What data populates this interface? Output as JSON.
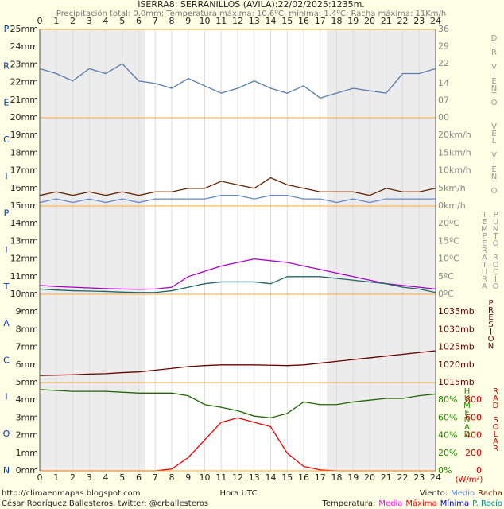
{
  "title": "ISERRA8: SERRANILLOS (AVILA):22/02/2025:1235m.",
  "subtitle": "Precipitación total: 0.0mm; Temperatura máxima: 10.6ºC, mínima: 1.4ºC; Racha máxima: 11Km/h",
  "x_label": "Hora UTC",
  "x": [
    0,
    1,
    2,
    3,
    4,
    5,
    6,
    7,
    8,
    9,
    10,
    11,
    12,
    13,
    14,
    15,
    16,
    17,
    18,
    19,
    20,
    21,
    22,
    23,
    24
  ],
  "xticks": [
    0,
    1,
    2,
    3,
    4,
    5,
    6,
    7,
    8,
    9,
    10,
    11,
    12,
    13,
    14,
    15,
    16,
    17,
    18,
    19,
    20,
    21,
    22,
    23,
    24
  ],
  "grid": true,
  "daylight": [
    6.4,
    17.4
  ],
  "left_axis": {
    "letters": [
      "P",
      "R",
      "E",
      "C",
      "I",
      "P",
      "I",
      "T",
      "A",
      "C",
      "I",
      "Ó",
      "N"
    ],
    "ylim": [
      0,
      25
    ],
    "yticks": [
      {
        "value": 0,
        "label": "0mm"
      },
      {
        "value": 1,
        "label": "1mm"
      },
      {
        "value": 2,
        "label": "2mm"
      },
      {
        "value": 3,
        "label": "3mm"
      },
      {
        "value": 4,
        "label": "4mm"
      },
      {
        "value": 5,
        "label": "5mm"
      },
      {
        "value": 6,
        "label": "6mm"
      },
      {
        "value": 7,
        "label": "7mm"
      },
      {
        "value": 8,
        "label": "8mm"
      },
      {
        "value": 9,
        "label": "9mm"
      },
      {
        "value": 10,
        "label": "10mm"
      },
      {
        "value": 11,
        "label": "11mm"
      },
      {
        "value": 12,
        "label": "12mm"
      },
      {
        "value": 13,
        "label": "13mm"
      },
      {
        "value": 14,
        "label": "14mm"
      },
      {
        "value": 15,
        "label": "15mm"
      },
      {
        "value": 16,
        "label": "16mm"
      },
      {
        "value": 17,
        "label": "17mm"
      },
      {
        "value": 18,
        "label": "18mm"
      },
      {
        "value": 19,
        "label": "19mm"
      },
      {
        "value": 20,
        "label": "20mm"
      },
      {
        "value": 21,
        "label": "21mm"
      },
      {
        "value": 22,
        "label": "22mm"
      },
      {
        "value": 23,
        "label": "23mm"
      },
      {
        "value": 24,
        "label": "24mm"
      },
      {
        "value": 25,
        "label": "25mm"
      }
    ]
  },
  "chart_data": [
    {
      "type": "line",
      "axis_labels": [
        {
          "text": "DIR VIENTO",
          "color": "#999999"
        }
      ],
      "tick_color": "#888888",
      "ylim": [
        0,
        36
      ],
      "yticks": [
        {
          "value": 36,
          "label": "36"
        },
        {
          "value": 29,
          "label": "29"
        },
        {
          "value": 22,
          "label": "22"
        },
        {
          "value": 14,
          "label": "14"
        },
        {
          "value": 7,
          "label": "07"
        },
        {
          "value": 0,
          "label": "00"
        }
      ],
      "series": [
        {
          "name": "Dirección",
          "color": "#5a7aad",
          "values": [
            20,
            18,
            15,
            20,
            18,
            22,
            15,
            14,
            12,
            16,
            13,
            10,
            12,
            15,
            12,
            10,
            13,
            8,
            10,
            12,
            11,
            10,
            18,
            18,
            20
          ]
        }
      ]
    },
    {
      "type": "line",
      "axis_labels": [
        {
          "text": "VEL VIENTO",
          "color": "#999999"
        }
      ],
      "tick_color": "#888888",
      "ylim": [
        0,
        25
      ],
      "yticks": [
        {
          "value": 0,
          "label": "0km/h"
        },
        {
          "value": 5,
          "label": "5km/h"
        },
        {
          "value": 10,
          "label": "10km/h"
        },
        {
          "value": 15,
          "label": "15km/h"
        },
        {
          "value": 20,
          "label": "20km/h"
        }
      ],
      "series": [
        {
          "name": "Racha",
          "color": "#662200",
          "values": [
            3,
            4,
            3,
            4,
            3,
            4,
            3,
            4,
            4,
            5,
            5,
            7,
            6,
            5,
            8,
            6,
            5,
            4,
            4,
            4,
            3,
            5,
            4,
            4,
            5
          ]
        },
        {
          "name": "Medio",
          "color": "#6688cc",
          "values": [
            1,
            2,
            1,
            2,
            1,
            2,
            1,
            2,
            2,
            2,
            2,
            3,
            3,
            2,
            3,
            3,
            2,
            2,
            1,
            2,
            1,
            2,
            2,
            2,
            2
          ]
        }
      ]
    },
    {
      "type": "line",
      "axis_labels": [
        {
          "text": "TEMPERATURA",
          "color": "#999999"
        },
        {
          "text": "PUNTO ROCÍO",
          "color": "#999999"
        }
      ],
      "tick_color": "#888888",
      "ylim": [
        0,
        25
      ],
      "yticks": [
        {
          "value": 0,
          "label": "0ºC"
        },
        {
          "value": 5,
          "label": "5ºC"
        },
        {
          "value": 10,
          "label": "10ºC"
        },
        {
          "value": 15,
          "label": "15ºC"
        },
        {
          "value": 20,
          "label": "20ºC"
        }
      ],
      "series": [
        {
          "name": "Media",
          "color": "#aa00cc",
          "values": [
            2.5,
            2.2,
            2,
            1.8,
            1.6,
            1.5,
            1.4,
            1.5,
            2,
            5,
            6.5,
            8,
            9,
            10,
            9.5,
            9,
            8,
            7,
            6,
            5,
            4,
            3,
            2.5,
            2,
            1.5
          ]
        },
        {
          "name": "P. Rocío",
          "color": "#226666",
          "values": [
            1.5,
            1.2,
            1,
            0.9,
            0.8,
            0.6,
            0.5,
            0.5,
            1,
            2,
            3,
            3.5,
            3.5,
            3.5,
            3,
            5,
            5,
            5,
            4.5,
            4,
            3.5,
            3,
            2,
            1.5,
            0.5
          ]
        }
      ]
    },
    {
      "type": "line",
      "axis_labels": [
        {
          "text": "PRESIÓN",
          "color": "#660000"
        }
      ],
      "tick_color": "#660000",
      "ylim": [
        1015,
        1040
      ],
      "yticks": [
        {
          "value": 1015,
          "label": "1015mb"
        },
        {
          "value": 1020,
          "label": "1020mb"
        },
        {
          "value": 1025,
          "label": "1025mb"
        },
        {
          "value": 1030,
          "label": "1030mb"
        },
        {
          "value": 1035,
          "label": "1035mb"
        }
      ],
      "series": [
        {
          "name": "Presión",
          "color": "#660000",
          "values": [
            1017,
            1017.1,
            1017.2,
            1017.4,
            1017.5,
            1017.8,
            1018,
            1018.5,
            1019,
            1019.5,
            1019.8,
            1020,
            1020,
            1020,
            1019.9,
            1019.8,
            1020,
            1020.5,
            1021,
            1021.5,
            1022,
            1022.5,
            1023,
            1023.5,
            1024
          ]
        }
      ]
    },
    {
      "type": "line",
      "axis_labels": [
        {
          "text": "HUMEDAD",
          "color": "#228800"
        },
        {
          "text": "RAD SOLAR",
          "color": "#cc0000"
        }
      ],
      "tick_color": "#228800",
      "y2_tick_color": "#cc0000",
      "ylim": [
        0,
        100
      ],
      "yticks": [
        {
          "value": 0,
          "label": "0%"
        },
        {
          "value": 20,
          "label": "20%"
        },
        {
          "value": 40,
          "label": "40%"
        },
        {
          "value": 60,
          "label": "60%"
        },
        {
          "value": 80,
          "label": "80%"
        }
      ],
      "y2lim": [
        0,
        1000
      ],
      "y2ticks": [
        0,
        200,
        400,
        600,
        800
      ],
      "y2_unit": "(W/m²)",
      "series": [
        {
          "name": "Humedad",
          "color": "#226600",
          "values": [
            92,
            91,
            90,
            90,
            90,
            89,
            88,
            88,
            88,
            85,
            75,
            72,
            68,
            62,
            60,
            65,
            78,
            75,
            75,
            78,
            80,
            82,
            82,
            85,
            87
          ]
        },
        {
          "name": "Radiación",
          "color": "#ee0000",
          "axis": "y2",
          "values": [
            0,
            0,
            0,
            0,
            0,
            0,
            0,
            0,
            20,
            150,
            350,
            550,
            600,
            550,
            500,
            200,
            50,
            10,
            0,
            0,
            0,
            0,
            0,
            0,
            0
          ]
        }
      ]
    }
  ],
  "footer": {
    "url": "http://climaenmapas.blogspot.com",
    "author": "César Rodríguez Ballesteros, twitter: @crballesteros",
    "wind_legend": {
      "label": "Viento:",
      "items": [
        {
          "name": "Medio",
          "color": "#6688cc"
        },
        {
          "name": "Racha",
          "color": "#662200"
        }
      ]
    },
    "temp_legend": {
      "label": "Temperatura:",
      "items": [
        {
          "name": "Media",
          "color": "#ff00ff"
        },
        {
          "name": "Máxima",
          "color": "#ff0000"
        },
        {
          "name": "Mínima",
          "color": "#0000cc"
        },
        {
          "name": "P. Rocío",
          "color": "#008888"
        }
      ]
    }
  }
}
